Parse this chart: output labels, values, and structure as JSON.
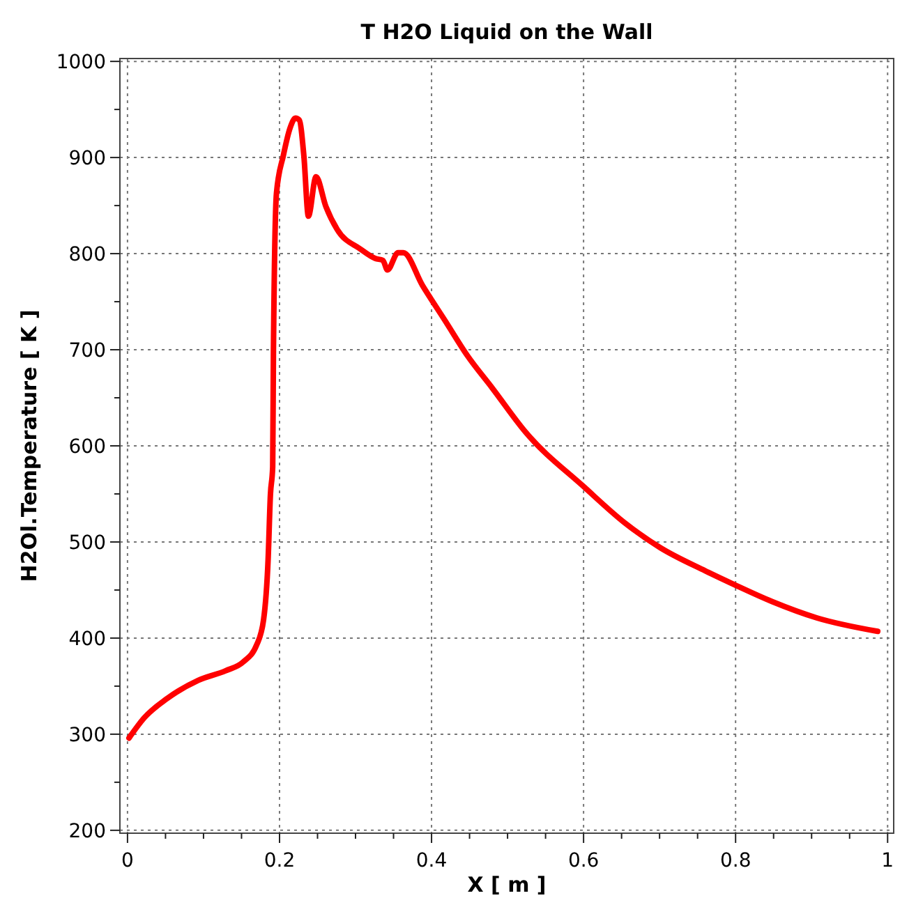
{
  "chart_data": {
    "type": "line",
    "title": "T H2O Liquid on the Wall",
    "xlabel": "X [ m ]",
    "ylabel": "H2Ol.Temperature [ K ]",
    "x": [
      0.002,
      0.022,
      0.052,
      0.093,
      0.129,
      0.152,
      0.17,
      0.179,
      0.185,
      0.188,
      0.191,
      0.192,
      0.196,
      0.205,
      0.214,
      0.221,
      0.226,
      0.232,
      0.238,
      0.248,
      0.261,
      0.276,
      0.306,
      0.326,
      0.336,
      0.342,
      0.356,
      0.363,
      0.388,
      0.418,
      0.447,
      0.48,
      0.524,
      0.601,
      0.654,
      0.701,
      0.76,
      0.8,
      0.848,
      0.907,
      0.987
    ],
    "series": [
      {
        "color": "#ff0000",
        "values": [
          296,
          317,
          337,
          356,
          366,
          375,
          393,
          419,
          482,
          549,
          578,
          699,
          863,
          902,
          931,
          941,
          939,
          902,
          839,
          880,
          849,
          825,
          805,
          795,
          793,
          783,
          801,
          801,
          767,
          730,
          694,
          660,
          614,
          557,
          520,
          494,
          470,
          455,
          438,
          421,
          407
        ]
      }
    ],
    "xlim": [
      -0.01,
      1.008
    ],
    "ylim": [
      197,
      1003
    ],
    "xticks": [
      0,
      {
        "value": 0.05,
        "label": null
      },
      {
        "value": 0.1,
        "label": null
      },
      {
        "value": 0.15,
        "label": null
      },
      0.2,
      {
        "value": 0.25,
        "label": null
      },
      {
        "value": 0.3,
        "label": null
      },
      {
        "value": 0.35,
        "label": null
      },
      0.4,
      {
        "value": 0.45,
        "label": null
      },
      {
        "value": 0.5,
        "label": null
      },
      {
        "value": 0.55,
        "label": null
      },
      0.6,
      {
        "value": 0.65,
        "label": null
      },
      {
        "value": 0.7,
        "label": null
      },
      {
        "value": 0.75,
        "label": null
      },
      0.8,
      {
        "value": 0.85,
        "label": null
      },
      {
        "value": 0.9,
        "label": null
      },
      {
        "value": 0.95,
        "label": null
      },
      1
    ],
    "yticks": [
      200,
      {
        "value": 250,
        "label": null
      },
      300,
      {
        "value": 350,
        "label": null
      },
      400,
      {
        "value": 450,
        "label": null
      },
      500,
      {
        "value": 550,
        "label": null
      },
      600,
      {
        "value": 650,
        "label": null
      },
      700,
      {
        "value": 750,
        "label": null
      },
      800,
      {
        "value": 850,
        "label": null
      },
      900,
      {
        "value": 950,
        "label": null
      },
      1000
    ],
    "grid": true,
    "marker": "none",
    "line_style": "solid"
  }
}
